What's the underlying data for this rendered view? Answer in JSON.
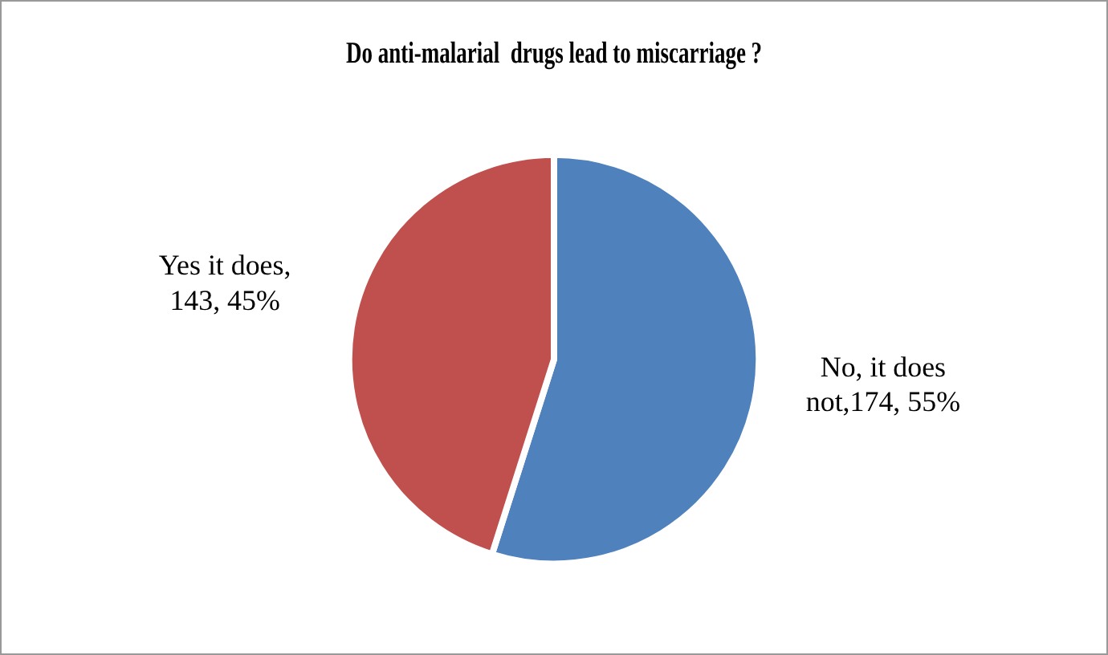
{
  "chart_data": {
    "type": "pie",
    "title": "Do anti-malarial  drugs lead to miscarriage ?",
    "categories": [
      "No, it does not",
      "Yes it does"
    ],
    "values": [
      174,
      143
    ],
    "colors": [
      "#4f81bd",
      "#c0504d"
    ],
    "value_labels": [
      ",174, 55%",
      ", 143, 45%"
    ],
    "legend": false
  }
}
